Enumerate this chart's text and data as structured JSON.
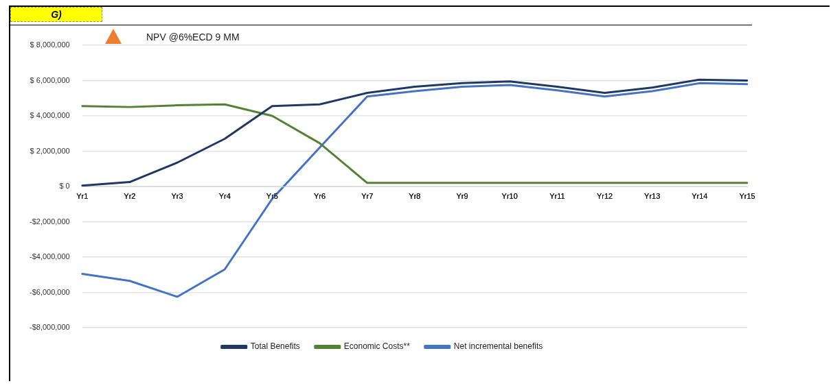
{
  "chart_data": {
    "type": "line",
    "title": "G)",
    "annotations": [
      "NPV @6%ECD 9 MM"
    ],
    "categories": [
      "Yr1",
      "Yr2",
      "Yr3",
      "Yr4",
      "Yr5",
      "Yr6",
      "Yr7",
      "Yr8",
      "Yr9",
      "Yr10",
      "Yr11",
      "Yr12",
      "Yr13",
      "Yr14",
      "Yr15"
    ],
    "series": [
      {
        "name": "Total Benefits",
        "color": "#203864",
        "values": [
          50000,
          250000,
          1350000,
          2700000,
          4550000,
          4650000,
          5300000,
          5650000,
          5850000,
          5950000,
          5650000,
          5300000,
          5600000,
          6050000,
          6000000
        ]
      },
      {
        "name": "Economic Costs**",
        "color": "#548235",
        "values": [
          4550000,
          4500000,
          4600000,
          4650000,
          4000000,
          2450000,
          200000,
          200000,
          200000,
          200000,
          200000,
          200000,
          200000,
          200000,
          200000
        ]
      },
      {
        "name": "Net incremental benefits",
        "color": "#4472c4",
        "values": [
          -4950000,
          -5350000,
          -6250000,
          -4700000,
          -700000,
          2200000,
          5100000,
          5400000,
          5650000,
          5750000,
          5450000,
          5100000,
          5400000,
          5850000,
          5800000
        ]
      }
    ],
    "ylim": [
      -8000000,
      8000000
    ],
    "yticks": [
      {
        "value": -8000000,
        "label": "-$8,000,000"
      },
      {
        "value": -6000000,
        "label": "-$6,000,000"
      },
      {
        "value": -4000000,
        "label": "-$4,000,000"
      },
      {
        "value": -2000000,
        "label": "-$2,000,000"
      },
      {
        "value": 0,
        "label": "$ 0"
      },
      {
        "value": 2000000,
        "label": "$ 2,000,000"
      },
      {
        "value": 4000000,
        "label": "$ 4,000,000"
      },
      {
        "value": 6000000,
        "label": "$ 6,000,000"
      },
      {
        "value": 8000000,
        "label": "$ 8,000,000"
      }
    ],
    "grid": "y",
    "legend": "bottom",
    "marker": "none",
    "line_style": "solid"
  }
}
